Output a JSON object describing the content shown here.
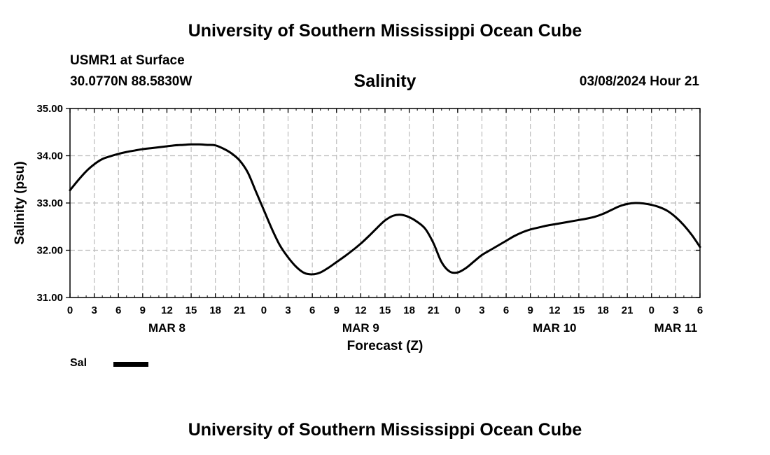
{
  "header": {
    "title": "University of Southern Mississippi Ocean Cube",
    "station": "USMR1 at Surface",
    "coordinates": "30.0770N  88.5830W",
    "datetime": "03/08/2024 Hour 21"
  },
  "footer": {
    "title": "University of Southern Mississippi Ocean Cube"
  },
  "chart_data": {
    "type": "line",
    "title": "Salinity",
    "xlabel": "Forecast (Z)",
    "ylabel": "Salinity (psu)",
    "ylim": [
      31.0,
      35.0
    ],
    "y_ticks": [
      "31.00",
      "32.00",
      "33.00",
      "34.00",
      "35.00"
    ],
    "xlim_hours": [
      0,
      78
    ],
    "x_tick_hours": [
      0,
      3,
      6,
      9,
      12,
      15,
      18,
      21,
      24,
      27,
      30,
      33,
      36,
      39,
      42,
      45,
      48,
      51,
      54,
      57,
      60,
      63,
      66,
      69,
      72,
      75,
      78
    ],
    "x_tick_labels": [
      "0",
      "3",
      "6",
      "9",
      "12",
      "15",
      "18",
      "21",
      "0",
      "3",
      "6",
      "9",
      "12",
      "15",
      "18",
      "21",
      "0",
      "3",
      "6",
      "9",
      "12",
      "15",
      "18",
      "21",
      "0",
      "3",
      "6"
    ],
    "date_labels": [
      {
        "label": "MAR 8",
        "hour": 12
      },
      {
        "label": "MAR 9",
        "hour": 36
      },
      {
        "label": "MAR 10",
        "hour": 60
      },
      {
        "label": "MAR 11",
        "hour": 75
      }
    ],
    "grid": true,
    "series": [
      {
        "name": "Sal",
        "x": [
          0,
          1,
          2,
          3,
          4,
          5,
          6,
          7,
          8,
          9,
          10,
          11,
          12,
          13,
          14,
          15,
          16,
          17,
          18,
          19,
          20,
          21,
          22,
          23,
          24,
          25,
          26,
          27,
          28,
          29,
          30,
          31,
          32,
          33,
          34,
          35,
          36,
          37,
          38,
          39,
          40,
          41,
          42,
          43,
          44,
          45,
          46,
          47,
          48,
          49,
          50,
          51,
          52,
          53,
          54,
          55,
          56,
          57,
          58,
          59,
          60,
          61,
          62,
          63,
          64,
          65,
          66,
          67,
          68,
          69,
          70,
          71,
          72,
          73,
          74,
          75,
          76,
          77,
          78
        ],
        "values": [
          33.27,
          33.48,
          33.67,
          33.82,
          33.93,
          33.99,
          34.04,
          34.08,
          34.11,
          34.14,
          34.16,
          34.18,
          34.2,
          34.22,
          34.23,
          34.24,
          34.24,
          34.23,
          34.22,
          34.15,
          34.05,
          33.9,
          33.65,
          33.25,
          32.85,
          32.45,
          32.1,
          31.85,
          31.65,
          31.52,
          31.49,
          31.53,
          31.63,
          31.75,
          31.87,
          32.0,
          32.14,
          32.3,
          32.47,
          32.63,
          32.73,
          32.75,
          32.7,
          32.6,
          32.45,
          32.15,
          31.75,
          31.55,
          31.53,
          31.62,
          31.76,
          31.9,
          32.0,
          32.1,
          32.2,
          32.3,
          32.38,
          32.44,
          32.48,
          32.52,
          32.55,
          32.58,
          32.61,
          32.64,
          32.67,
          32.71,
          32.77,
          32.85,
          32.93,
          32.98,
          33.0,
          32.99,
          32.96,
          32.91,
          32.83,
          32.7,
          32.53,
          32.32,
          32.07
        ]
      }
    ],
    "legend": [
      {
        "label": "Sal",
        "style": "thick-solid"
      }
    ],
    "legend_position": "bottom-left",
    "line_color": "#000000"
  }
}
